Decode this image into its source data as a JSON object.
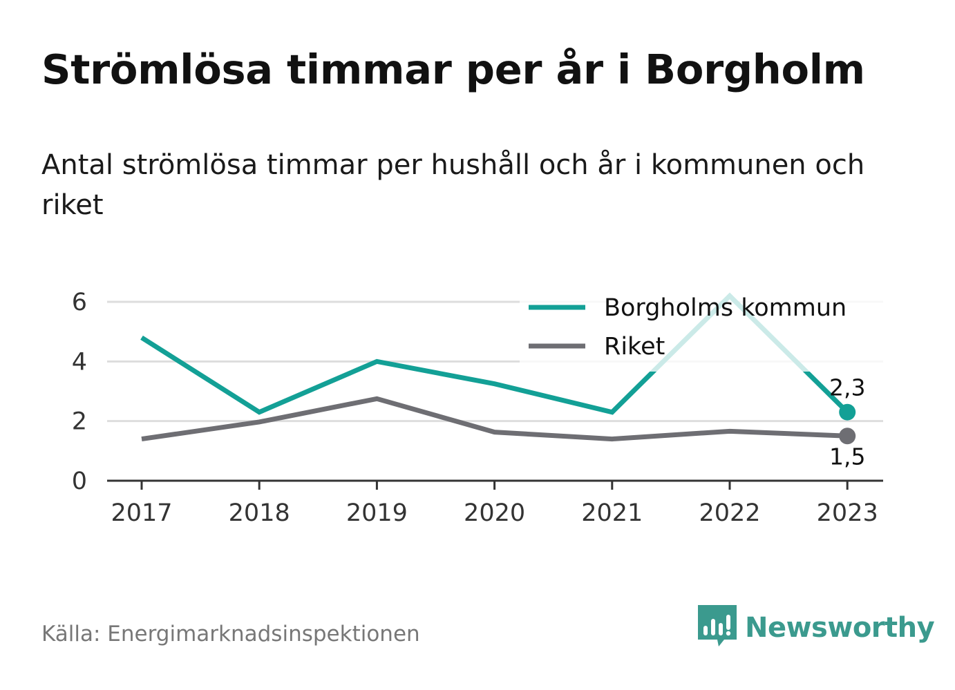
{
  "title": "Strömlösa timmar per år i Borgholm",
  "subtitle": "Antal strömlösa timmar per hushåll och år i kommunen och riket",
  "source": "Källa: Energimarknadsinspektionen",
  "brand": {
    "name": "Newsworthy",
    "icon": "newsworthy-bar-chart-icon",
    "color": "#3b9a8e"
  },
  "chart_data": {
    "type": "line",
    "categories": [
      "2017",
      "2018",
      "2019",
      "2020",
      "2021",
      "2022",
      "2023"
    ],
    "series": [
      {
        "name": "Borgholms kommun",
        "color": "#13a096",
        "values": [
          4.8,
          2.3,
          4.0,
          3.25,
          2.3,
          6.2,
          2.3
        ]
      },
      {
        "name": "Riket",
        "color": "#6e6e73",
        "values": [
          1.4,
          1.97,
          2.75,
          1.63,
          1.4,
          1.66,
          1.5
        ]
      }
    ],
    "y_ticks": [
      "0",
      "2",
      "4",
      "6"
    ],
    "ylim": [
      0,
      6
    ],
    "data_labels": [
      {
        "series": "Borgholms kommun",
        "category": "2023",
        "text": "2,3"
      },
      {
        "series": "Riket",
        "category": "2023",
        "text": "1,5"
      }
    ],
    "legend_position": "top-right",
    "grid": true
  }
}
